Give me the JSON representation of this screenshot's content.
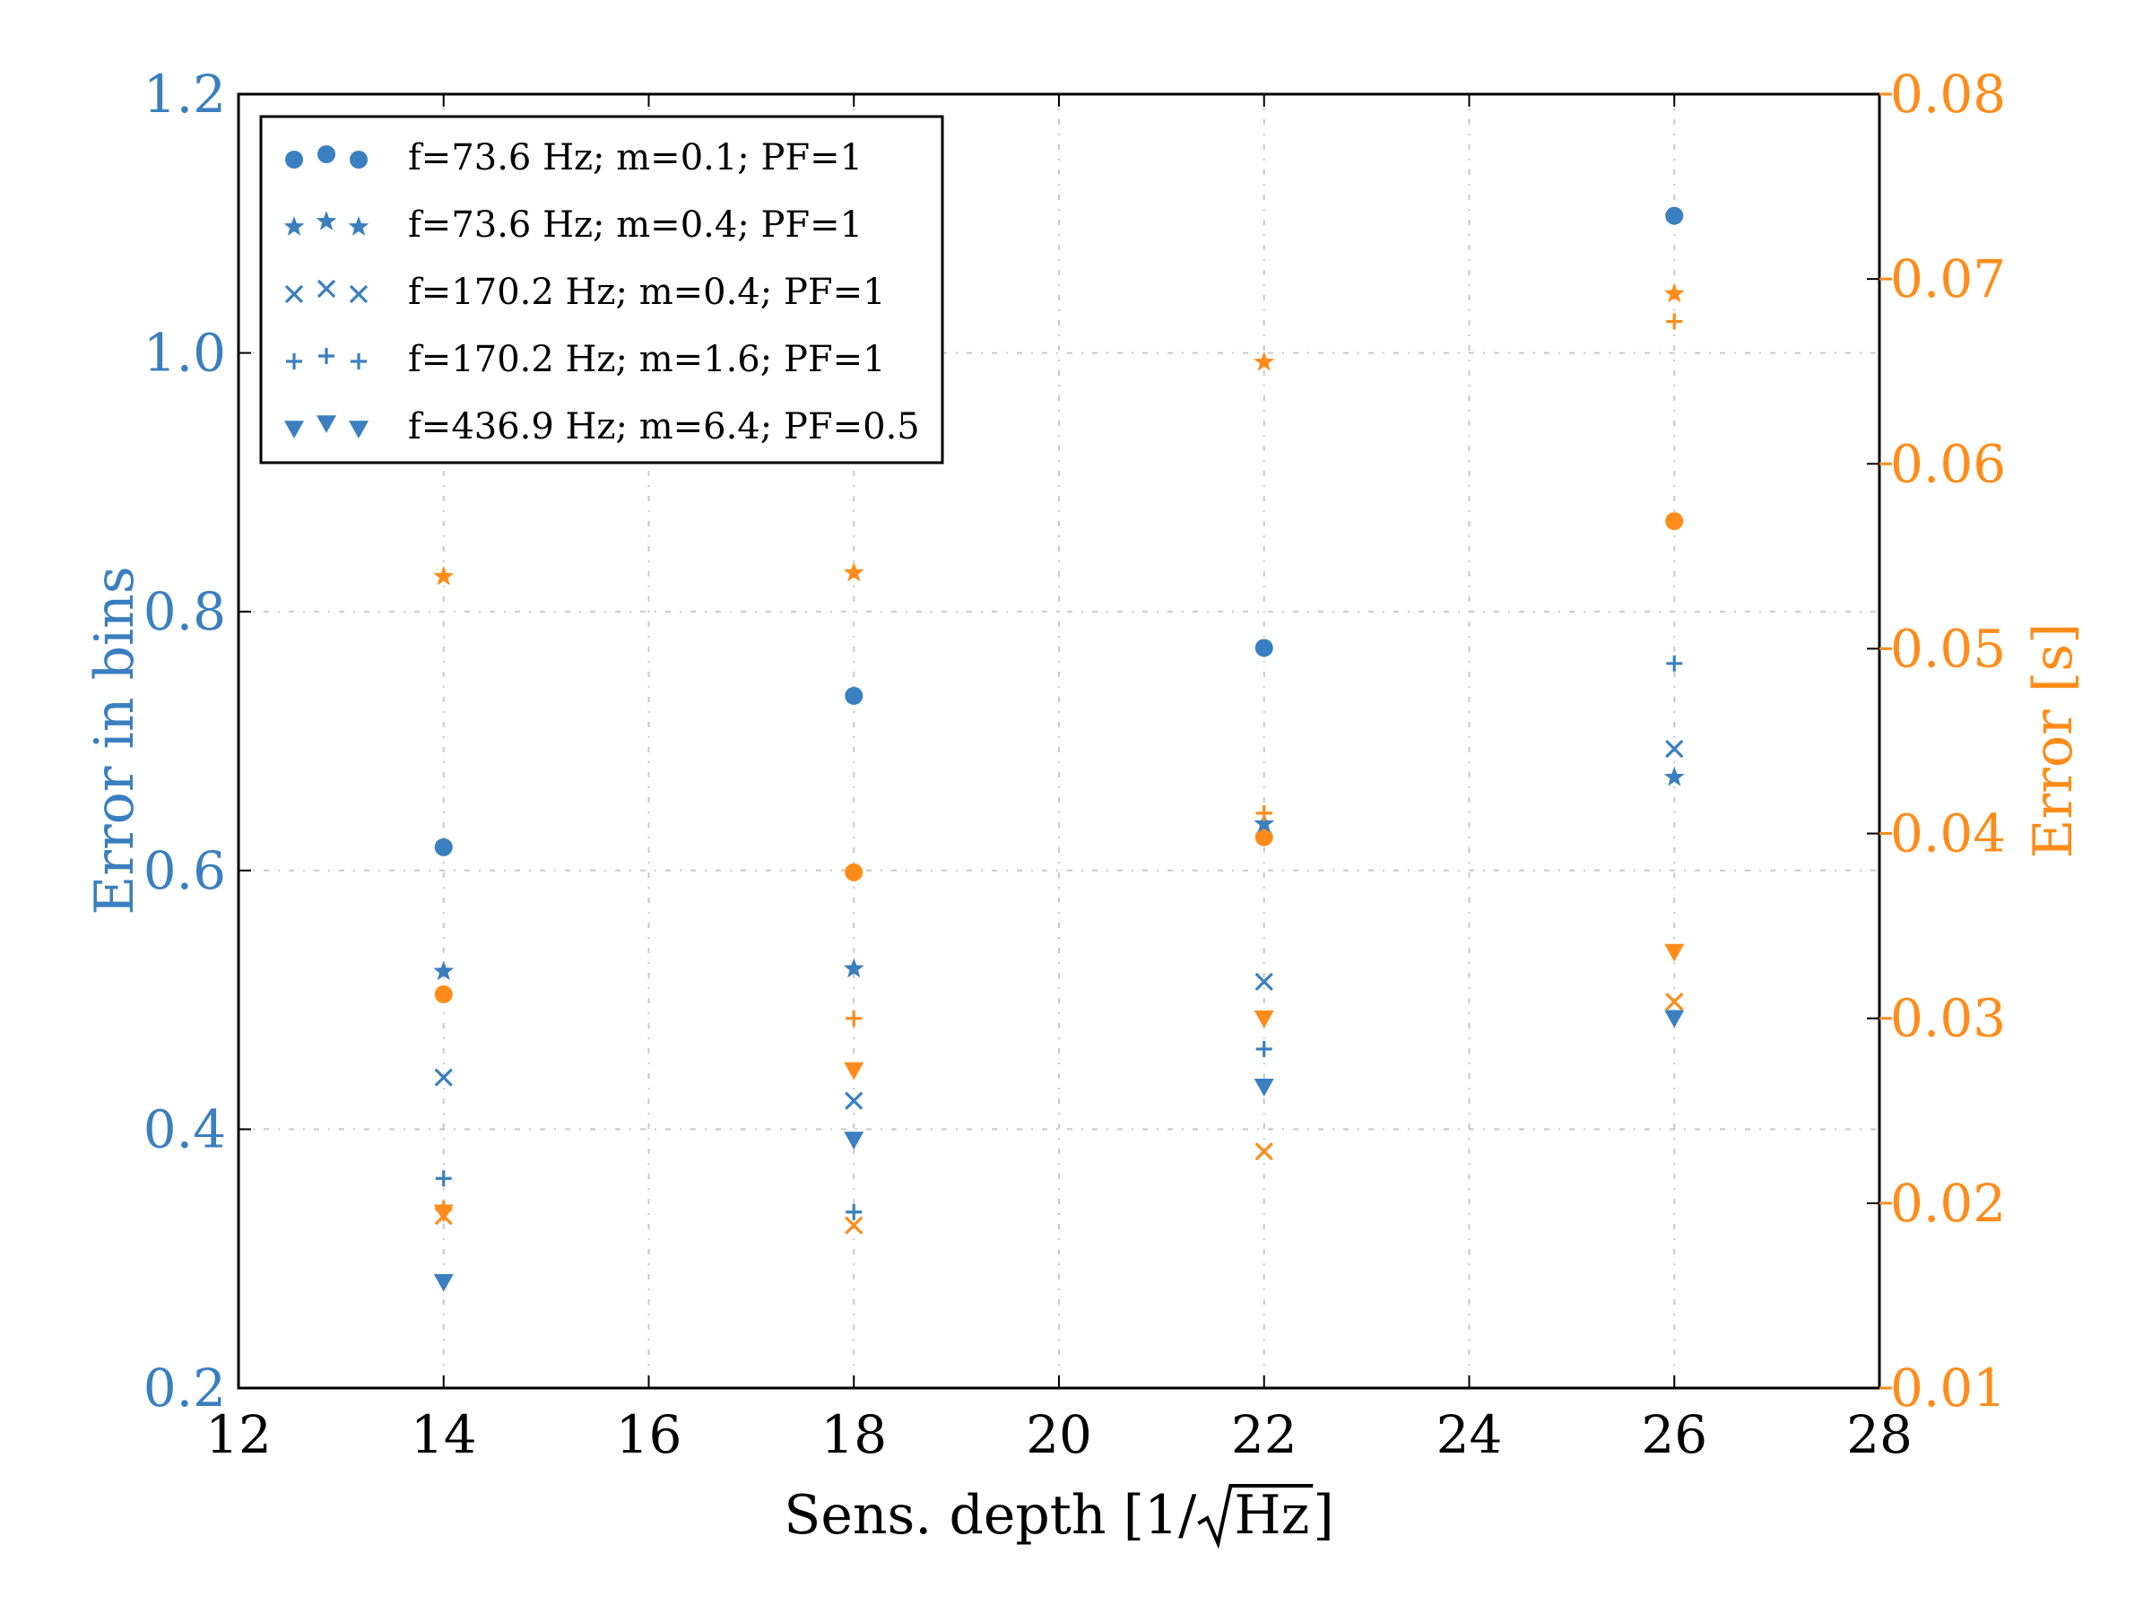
{
  "chart_data": {
    "type": "scatter",
    "xlabel_main": "Sens. depth [1/",
    "xlabel_sqrt": "Hz",
    "xlabel_end": "]",
    "ylabel_left": "Error in bins",
    "ylabel_right": "Error [s]",
    "xlim": [
      12,
      28
    ],
    "ylim_left": [
      0.2,
      1.2
    ],
    "ylim_right": [
      0.01,
      0.08
    ],
    "x_ticks": [
      "12",
      "14",
      "16",
      "18",
      "20",
      "22",
      "24",
      "26",
      "28"
    ],
    "y_left_ticks": [
      "0.2",
      "0.4",
      "0.6",
      "0.8",
      "1.0",
      "1.2"
    ],
    "y_right_ticks": [
      "0.01",
      "0.02",
      "0.03",
      "0.04",
      "0.05",
      "0.06",
      "0.07",
      "0.08"
    ],
    "grid": true,
    "legend_position": "top-left",
    "colors": {
      "left": "#3a7fbf",
      "right": "#ff8c1a"
    },
    "series": [
      {
        "name": "f=73.6 Hz; m=0.1; PF=1",
        "marker": "circle",
        "x": [
          14,
          18,
          22,
          26
        ],
        "left_values": [
          0.618,
          0.735,
          0.772,
          1.106
        ],
        "right_values": [
          0.0313,
          0.0379,
          0.0398,
          0.0569
        ]
      },
      {
        "name": "f=73.6 Hz; m=0.4; PF=1",
        "marker": "star",
        "x": [
          14,
          18,
          22,
          26
        ],
        "left_values": [
          0.522,
          0.524,
          0.636,
          0.672
        ],
        "right_values": [
          0.0539,
          0.0541,
          0.0655,
          0.0692
        ]
      },
      {
        "name": "f=170.2 Hz; m=0.4; PF=1",
        "marker": "x",
        "x": [
          14,
          18,
          22,
          26
        ],
        "left_values": [
          0.44,
          0.422,
          0.514,
          0.694
        ],
        "right_values": [
          0.0193,
          0.0188,
          0.0228,
          0.0309
        ]
      },
      {
        "name": "f=170.2 Hz; m=1.6; PF=1",
        "marker": "plus",
        "x": [
          14,
          18,
          22,
          26
        ],
        "left_values": [
          0.362,
          0.336,
          0.462,
          0.76
        ],
        "right_values": [
          0.0197,
          0.03,
          0.0411,
          0.0677
        ]
      },
      {
        "name": "f=436.9 Hz; m=6.4; PF=0.5",
        "marker": "triangle-down",
        "x": [
          14,
          18,
          22,
          26
        ],
        "left_values": [
          0.282,
          0.392,
          0.433,
          0.486
        ],
        "right_values": [
          0.0195,
          0.0272,
          0.03,
          0.0336
        ]
      }
    ]
  }
}
